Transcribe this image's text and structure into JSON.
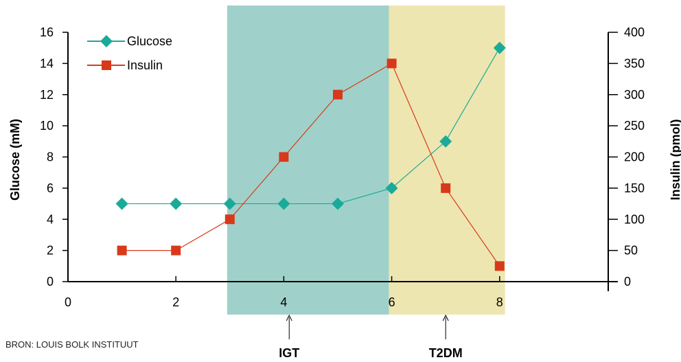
{
  "chart_data": {
    "type": "line",
    "x_axis": {
      "range": [
        0,
        10
      ],
      "ticks": [
        0,
        2,
        4,
        6,
        8
      ]
    },
    "y_left": {
      "label": "Glucose (mM)",
      "range": [
        0,
        16
      ],
      "ticks": [
        0,
        2,
        4,
        6,
        8,
        10,
        12,
        14,
        16
      ]
    },
    "y_right": {
      "label": "Insulin (pmol)",
      "range": [
        0,
        400
      ],
      "ticks": [
        0,
        50,
        100,
        150,
        200,
        250,
        300,
        350,
        400
      ]
    },
    "series": [
      {
        "name": "Glucose",
        "axis": "left",
        "marker": "diamond",
        "color": "#1aaa98",
        "x": [
          1,
          2,
          3,
          4,
          5,
          6,
          7,
          8
        ],
        "y": [
          5,
          5,
          5,
          5,
          5,
          6,
          9,
          15
        ]
      },
      {
        "name": "Insulin",
        "axis": "right",
        "marker": "square",
        "color": "#d8391a",
        "x": [
          1,
          2,
          3,
          4,
          5,
          6,
          7,
          8
        ],
        "y": [
          50,
          50,
          100,
          200,
          300,
          350,
          150,
          25
        ]
      }
    ],
    "regions": [
      {
        "label": "IGT",
        "x_start": 2.95,
        "x_end": 5.95,
        "color": "#9fd1ca",
        "arrow_x": 4.1
      },
      {
        "label": "T2DM",
        "x_start": 5.95,
        "x_end": 8.1,
        "color": "#eee6b0",
        "arrow_x": 7.0
      }
    ],
    "legend": {
      "placement": "top-left"
    }
  },
  "source": "BRON: LOUIS BOLK INSTITUUT"
}
